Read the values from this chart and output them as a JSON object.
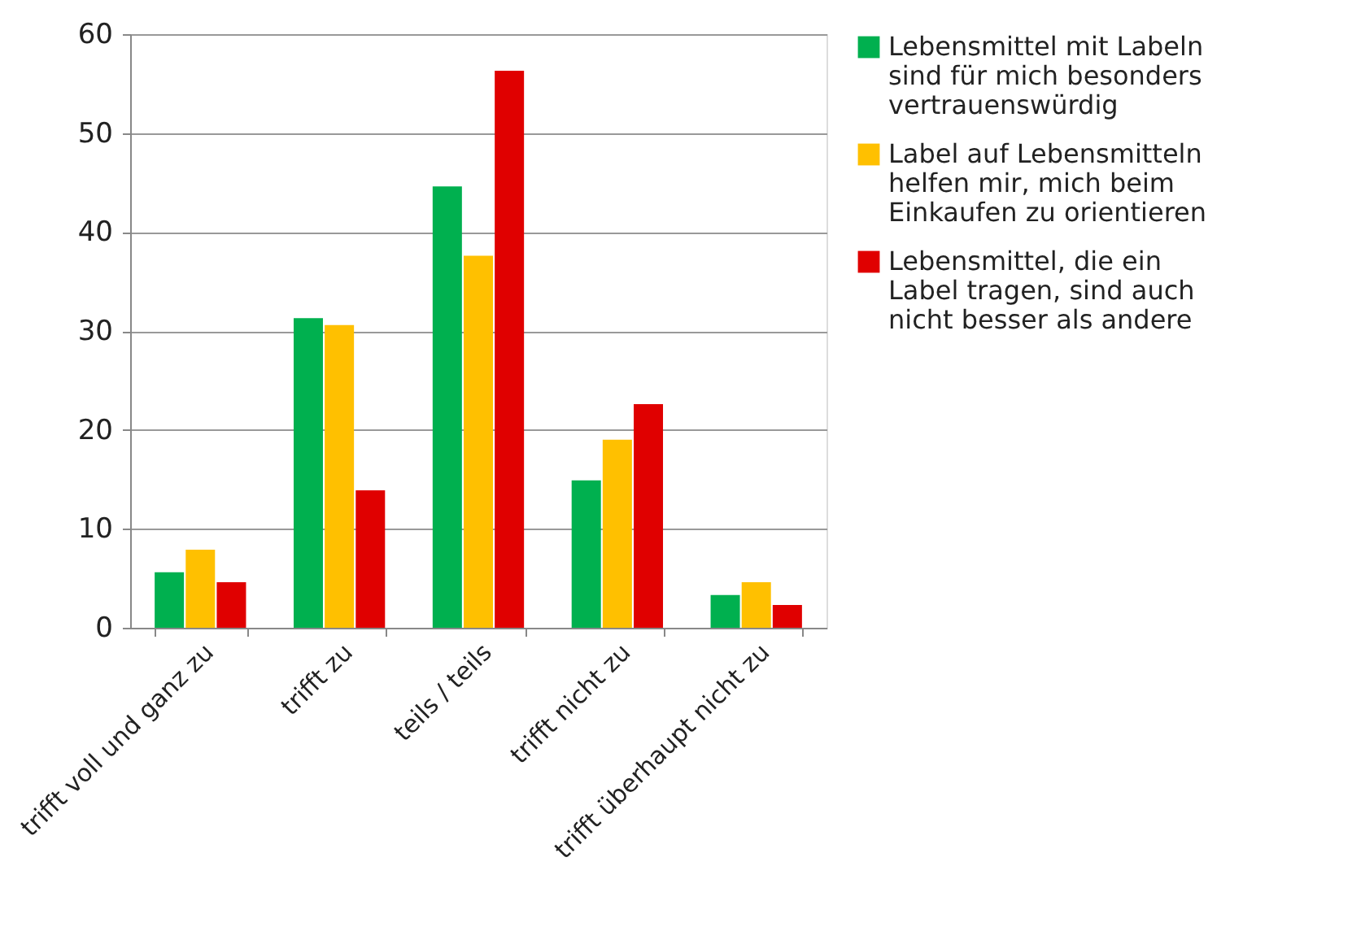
{
  "chart_data": {
    "type": "bar",
    "categories": [
      "trifft voll und ganz zu",
      "trifft zu",
      "teils / teils",
      "trifft nicht zu",
      "trifft überhaupt nicht zu"
    ],
    "series": [
      {
        "name": "Lebensmittel mit Labeln sind für mich besonders vertrauenswürdig",
        "color": "#00b04f",
        "values": [
          5.6,
          31.3,
          44.6,
          14.9,
          3.3
        ]
      },
      {
        "name": "Label auf Lebensmitteln helfen mir, mich beim Einkaufen zu orientieren",
        "color": "#ffc000",
        "values": [
          7.9,
          30.6,
          37.6,
          19.0,
          4.6
        ]
      },
      {
        "name": "Lebensmittel, die ein Label tragen, sind auch nicht besser als andere",
        "color": "#e00000",
        "values": [
          4.6,
          13.9,
          56.3,
          22.6,
          2.3
        ]
      }
    ],
    "ylim": [
      0,
      60
    ],
    "yticks": [
      0,
      10,
      20,
      30,
      40,
      50,
      60
    ],
    "grid": "y",
    "legend": "right"
  }
}
